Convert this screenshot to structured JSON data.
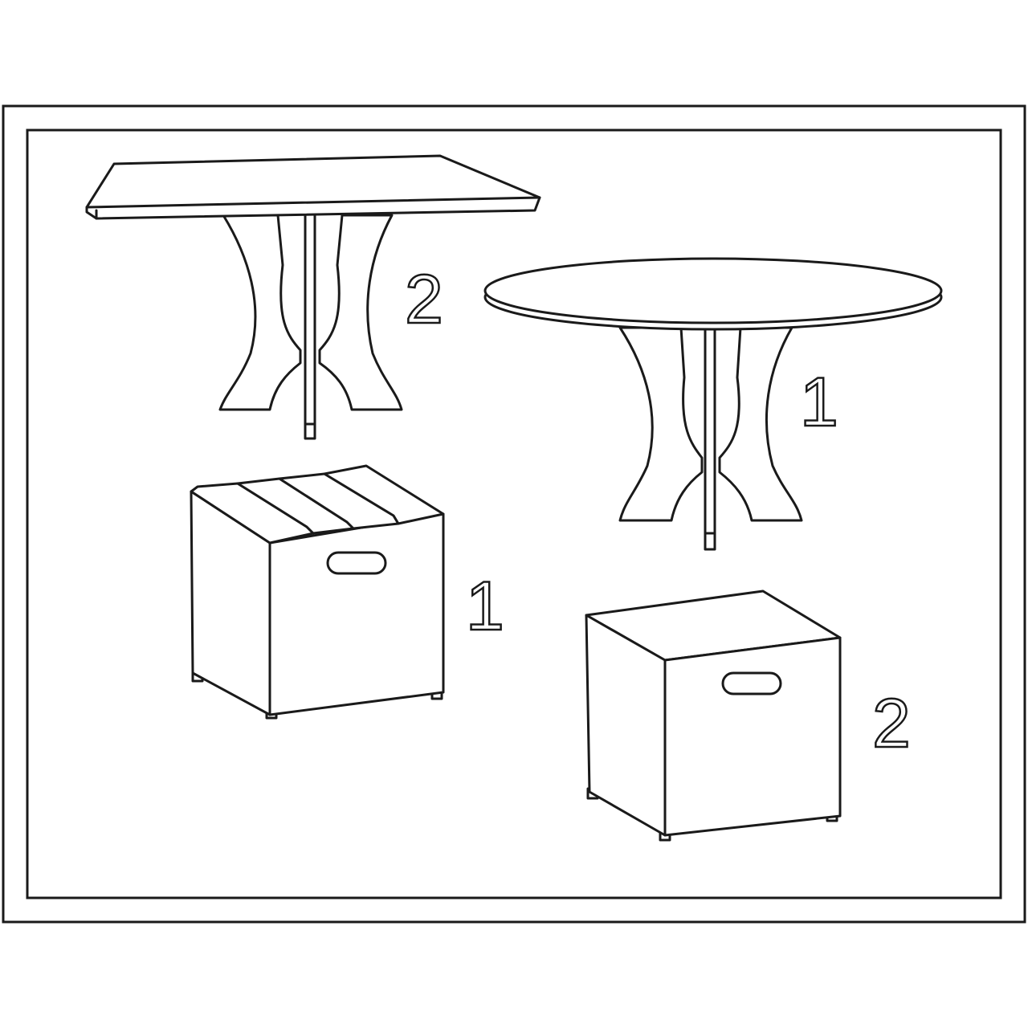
{
  "labels": {
    "square_table": "2",
    "round_table": "1",
    "slatted_stool": "1",
    "solid_stool": "2"
  },
  "colors": {
    "line": "#1a1a1a",
    "background": "#ffffff"
  }
}
